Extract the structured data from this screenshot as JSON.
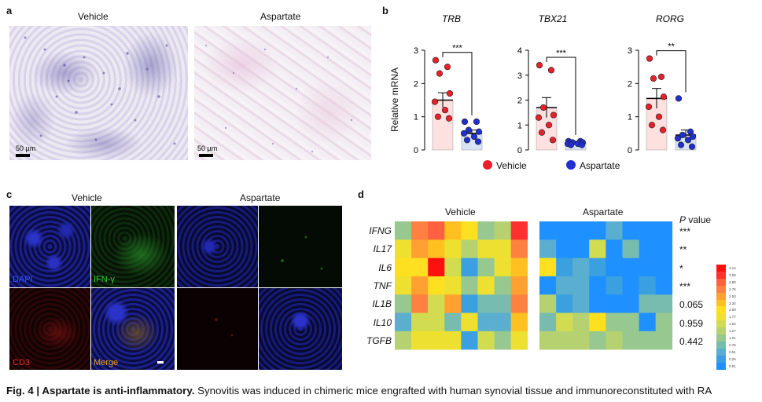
{
  "panel_a": {
    "letter": "a",
    "vehicle_label": "Vehicle",
    "aspartate_label": "Aspartate",
    "scale_label": "50 µm"
  },
  "panel_b": {
    "letter": "b",
    "ylabel": "Relative mRNA",
    "legend": {
      "vehicle": "Vehicle",
      "aspartate": "Aspartate",
      "vehicle_color": "#e8202a",
      "aspartate_color": "#1f2fd1"
    }
  },
  "panel_c": {
    "letter": "c",
    "vehicle_label": "Vehicle",
    "aspartate_label": "Aspartate",
    "dapi": "DAPI",
    "ifng": "IFN-γ",
    "cd3": "CD3",
    "merge": "Merge"
  },
  "panel_d": {
    "letter": "d",
    "vehicle_label": "Vehicle",
    "aspartate_label": "Aspartate",
    "p_header_p": "P",
    "p_header_value": "value",
    "genes": [
      "IFNG",
      "IL17",
      "IL6",
      "TNF",
      "IL1B",
      "IL10",
      "TGFB"
    ],
    "p_values": [
      "***",
      "**",
      "*",
      "***",
      "0.065",
      "0.959",
      "0.442"
    ],
    "legend_ticks": [
      "3.14",
      "3.05",
      "2.80",
      "2.76",
      "2.53",
      "2.34",
      "2.00",
      "1.77",
      "1.52",
      "1.27",
      "1.01",
      "0.76",
      "0.51",
      "0.26",
      "0.01"
    ]
  },
  "chart_data": [
    {
      "type": "bar",
      "title": "TRB",
      "ylabel": "Relative mRNA",
      "categories": [
        "Vehicle",
        "Aspartate"
      ],
      "ylim": [
        0,
        3
      ],
      "yticks": [
        "0",
        "1",
        "2",
        "3"
      ],
      "values": [
        1.5,
        0.5
      ],
      "errors": [
        0.22,
        0.1
      ],
      "points": [
        [
          2.7,
          2.5,
          2.3,
          1.7,
          1.45,
          1.2,
          1.0,
          0.95
        ],
        [
          0.85,
          0.85,
          0.6,
          0.55,
          0.5,
          0.4,
          0.3,
          0.25
        ]
      ],
      "significance": "***"
    },
    {
      "type": "bar",
      "title": "TBX21",
      "ylabel": "Relative mRNA",
      "categories": [
        "Vehicle",
        "Aspartate"
      ],
      "ylim": [
        0,
        4
      ],
      "yticks": [
        "0",
        "1",
        "2",
        "3",
        "4"
      ],
      "values": [
        1.7,
        0.3
      ],
      "errors": [
        0.4,
        0.05
      ],
      "points": [
        [
          3.4,
          3.2,
          1.7,
          1.4,
          1.3,
          1.0,
          0.7,
          0.4
        ],
        [
          0.35,
          0.35,
          0.3,
          0.3,
          0.25,
          0.25,
          0.2,
          0.2
        ]
      ],
      "significance": "***"
    },
    {
      "type": "bar",
      "title": "RORG",
      "ylabel": "Relative mRNA",
      "categories": [
        "Vehicle",
        "Aspartate"
      ],
      "ylim": [
        0,
        3
      ],
      "yticks": [
        "0",
        "1",
        "2",
        "3"
      ],
      "values": [
        1.55,
        0.45
      ],
      "errors": [
        0.3,
        0.15
      ],
      "points": [
        [
          2.75,
          2.2,
          2.15,
          1.6,
          1.3,
          1.0,
          0.75,
          0.6
        ],
        [
          1.55,
          0.55,
          0.45,
          0.4,
          0.35,
          0.3,
          0.15,
          0.1
        ]
      ],
      "significance": "**"
    },
    {
      "type": "heatmap",
      "title": "",
      "rows": [
        "IFNG",
        "IL17",
        "IL6",
        "TNF",
        "IL1B",
        "IL10",
        "TGFB"
      ],
      "groups": [
        "Vehicle",
        "Aspartate"
      ],
      "scale_range": [
        0.01,
        3.14
      ],
      "vehicle_values": [
        [
          1.0,
          2.5,
          2.6,
          2.0,
          1.7,
          0.8,
          1.1,
          3.0
        ],
        [
          1.6,
          2.3,
          2.0,
          1.6,
          1.1,
          1.6,
          1.6,
          2.4
        ],
        [
          1.9,
          1.7,
          3.1,
          1.3,
          0.2,
          1.0,
          1.6,
          2.1
        ],
        [
          1.5,
          2.3,
          1.9,
          1.6,
          1.0,
          1.5,
          1.0,
          2.2
        ],
        [
          1.0,
          2.5,
          1.3,
          2.2,
          0.3,
          0.7,
          0.7,
          2.4
        ],
        [
          0.5,
          1.3,
          1.3,
          0.7,
          1.5,
          0.4,
          0.4,
          2.0
        ],
        [
          1.1,
          1.6,
          1.6,
          1.6,
          0.3,
          1.4,
          0.9,
          1.6
        ]
      ],
      "aspartate_values": [
        [
          0.05,
          0.05,
          0.05,
          0.05,
          0.35,
          0.05,
          0.05,
          0.05
        ],
        [
          0.4,
          0.05,
          0.05,
          1.25,
          0.05,
          0.6,
          0.05,
          0.05
        ],
        [
          1.9,
          0.2,
          0.5,
          0.3,
          0.05,
          0.05,
          0.05,
          0.05
        ],
        [
          0.1,
          0.45,
          0.45,
          0.1,
          0.3,
          0.05,
          0.2,
          0.05
        ],
        [
          1.2,
          0.2,
          0.4,
          0.05,
          0.05,
          0.05,
          0.7,
          0.7
        ],
        [
          0.7,
          1.4,
          1.2,
          1.8,
          1.0,
          1.0,
          0.05,
          1.0
        ],
        [
          1.1,
          1.2,
          1.1,
          1.0,
          1.1,
          1.0,
          0.9,
          0.9
        ]
      ]
    }
  ],
  "caption": {
    "bold": "Fig. 4 | Aspartate is anti-inflammatory.",
    "text": "Synovitis was induced in chimeric mice engrafted with human synovial tissue and immunoreconstituted with RA"
  }
}
